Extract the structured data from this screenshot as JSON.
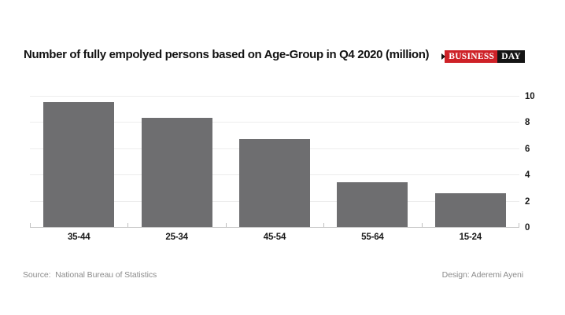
{
  "header": {
    "title": "Number of fully empolyed persons based on Age-Group in Q4 2020 (million)",
    "logo": {
      "business": "BUSINESS",
      "day": "DAY",
      "red_color": "#ce2127",
      "black_color": "#141414"
    }
  },
  "chart_data": {
    "type": "bar",
    "title": "Number of fully empolyed persons based on Age-Group in Q4 2020 (million)",
    "categories": [
      "35-44",
      "25-34",
      "45-54",
      "55-64",
      "15-24"
    ],
    "values": [
      9.5,
      8.3,
      6.7,
      3.4,
      2.6
    ],
    "xlabel": "",
    "ylabel": "",
    "ylim": [
      0,
      10
    ],
    "yticks": [
      0,
      2,
      4,
      6,
      8,
      10
    ],
    "ytick_side": "right",
    "grid": true,
    "legend": false,
    "bar_color": "#6e6e70"
  },
  "footer": {
    "source_label": "Source:  National Bureau of Statistics",
    "design_label": "Design: Aderemi Ayeni"
  }
}
